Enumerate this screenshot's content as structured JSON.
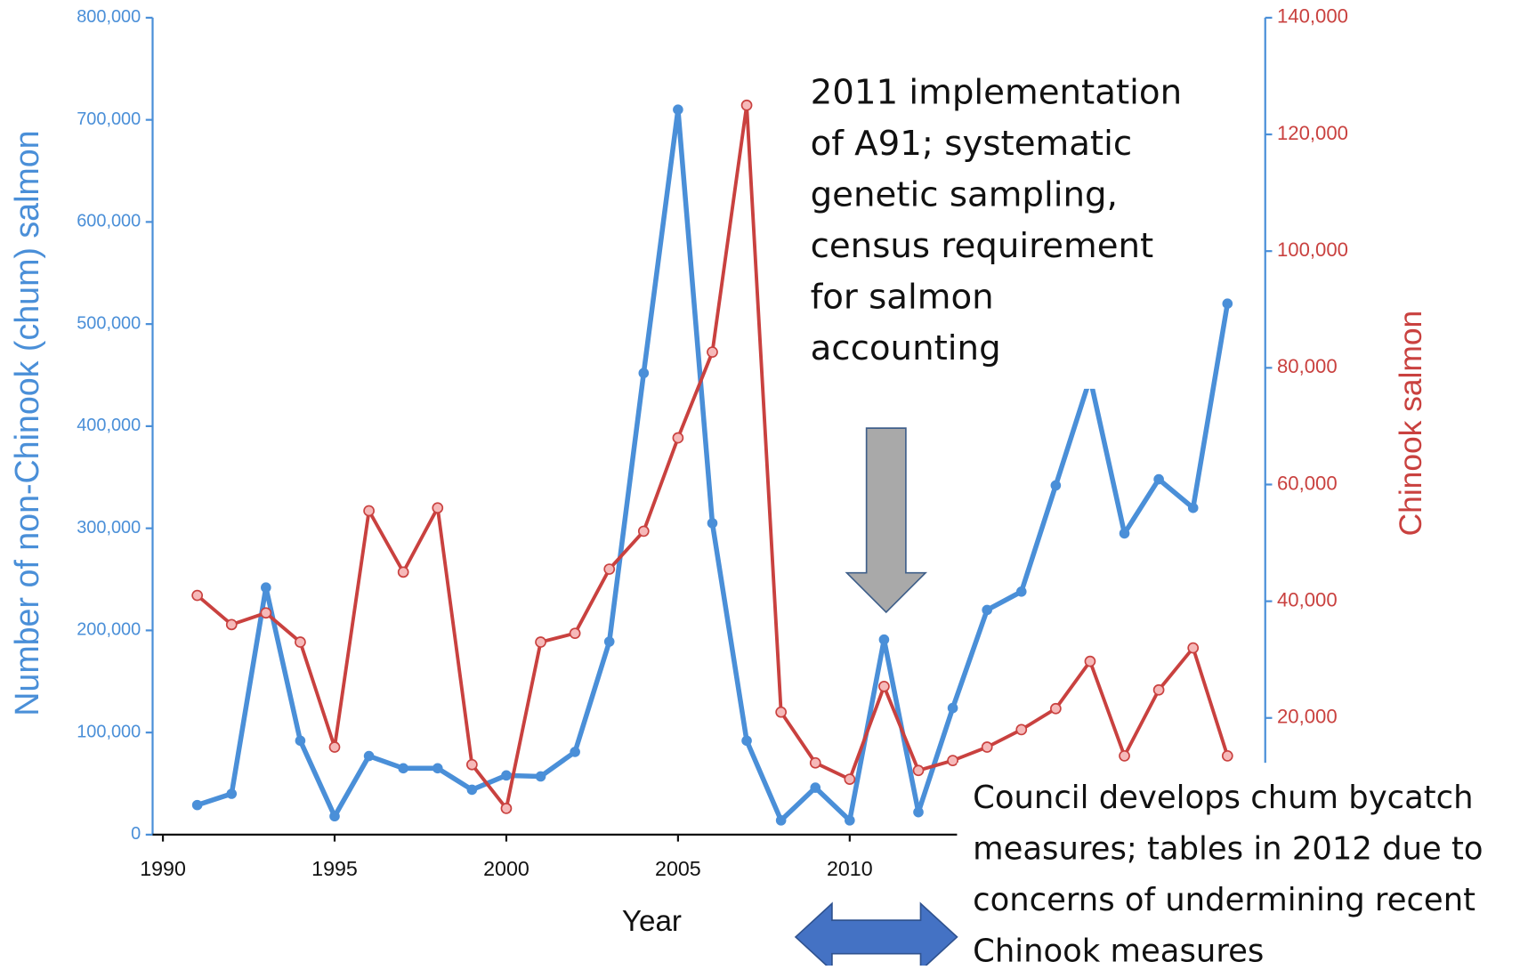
{
  "chart_data": {
    "type": "line",
    "xlabel": "Year",
    "ylabel": "Number of non-Chinook (chum) salmon",
    "y2label": "Chinook salmon",
    "x": [
      1991,
      1992,
      1993,
      1994,
      1995,
      1996,
      1997,
      1998,
      1999,
      2000,
      2001,
      2002,
      2003,
      2004,
      2005,
      2006,
      2007,
      2008,
      2009,
      2010,
      2011,
      2012,
      2013,
      2014,
      2015,
      2016,
      2017,
      2018,
      2019,
      2020,
      2021
    ],
    "series": [
      {
        "name": "Number of non-Chinook (chum) salmon",
        "color": "#4a8fd8",
        "axis": "y",
        "values": [
          29000,
          40000,
          242000,
          92000,
          18000,
          77000,
          65000,
          65000,
          44000,
          58000,
          57000,
          81000,
          189000,
          452000,
          710000,
          305000,
          92000,
          14000,
          46000,
          14000,
          191000,
          22000,
          124000,
          220000,
          238000,
          342000,
          447000,
          295000,
          348000,
          320000,
          520000
        ]
      },
      {
        "name": "Chinook salmon",
        "color": "#c9413f",
        "axis": "y2",
        "values": [
          41000,
          36000,
          38000,
          33000,
          15000,
          55500,
          45000,
          56000,
          12000,
          4500,
          33000,
          34500,
          45500,
          52000,
          68000,
          82700,
          125000,
          21000,
          12300,
          9500,
          25400,
          11000,
          12700,
          15000,
          18000,
          21600,
          29700,
          13500,
          24800,
          32000,
          13500
        ]
      }
    ],
    "xlim": [
      1989.7,
      2022.1
    ],
    "xticks": [
      1990,
      1995,
      2000,
      2005,
      2010
    ],
    "ylim": [
      0,
      800000
    ],
    "yticks": [
      0,
      {
        "value": 100000,
        "label": "100,000"
      },
      {
        "value": 200000,
        "label": "200,000"
      },
      {
        "value": 300000,
        "label": "300,000"
      },
      {
        "value": 400000,
        "label": "400,000"
      },
      {
        "value": 500000,
        "label": "500,000"
      },
      {
        "value": 600000,
        "label": "600,000"
      },
      {
        "value": 700000,
        "label": "700,000"
      },
      {
        "value": 800000,
        "label": "800,000"
      }
    ],
    "y2lim": [
      0,
      140000
    ],
    "y2ticks": [
      {
        "value": 20000,
        "label": "20,000"
      },
      {
        "value": 40000,
        "label": "40,000"
      },
      {
        "value": 60000,
        "label": "60,000"
      },
      {
        "value": 80000,
        "label": "80,000"
      },
      {
        "value": 100000,
        "label": "100,000"
      },
      {
        "value": 120000,
        "label": "120,000"
      },
      {
        "value": 140000,
        "label": "140,000"
      }
    ],
    "annotations": [
      {
        "lines": [
          "2011 implementation",
          "of A91; systematic",
          "genetic sampling,",
          "census requirement",
          "for salmon",
          "accounting"
        ]
      },
      {
        "lines": [
          "Council develops chum bycatch",
          "measures; tables in 2012 due to",
          "concerns of undermining recent",
          "Chinook measures"
        ]
      }
    ]
  }
}
